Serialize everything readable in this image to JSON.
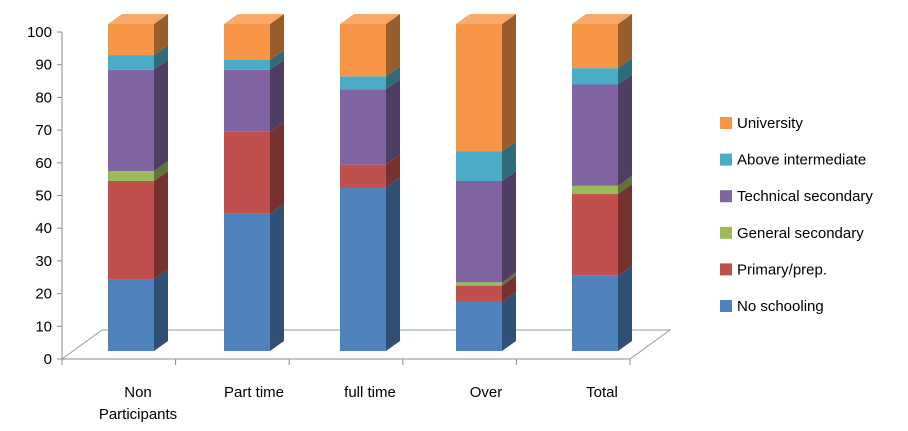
{
  "chart_data": {
    "type": "bar",
    "stacked": true,
    "three_d": true,
    "categories": [
      "Non Participants",
      "Part time",
      "full time",
      "Over",
      "Total"
    ],
    "ylim": [
      0,
      100
    ],
    "yticks": [
      0,
      10,
      20,
      30,
      40,
      50,
      60,
      70,
      80,
      90,
      100
    ],
    "legend_position": "right",
    "series": [
      {
        "name": "No schooling",
        "color": "#4F81BD",
        "values": [
          22,
          42,
          50,
          15,
          23
        ]
      },
      {
        "name": "Primary/prep.",
        "color": "#C0504D",
        "values": [
          30,
          25,
          7,
          5,
          25
        ]
      },
      {
        "name": "General secondary",
        "color": "#9BBB59",
        "values": [
          3,
          0,
          0,
          1,
          2.5
        ]
      },
      {
        "name": "Technical secondary",
        "color": "#8064A2",
        "values": [
          31,
          19,
          23,
          31,
          31
        ]
      },
      {
        "name": "Above intermediate",
        "color": "#4BACC6",
        "values": [
          4.5,
          3,
          4,
          9,
          5
        ]
      },
      {
        "name": "University",
        "color": "#F79646",
        "values": [
          9.5,
          11,
          16,
          39,
          13.5
        ]
      }
    ]
  }
}
